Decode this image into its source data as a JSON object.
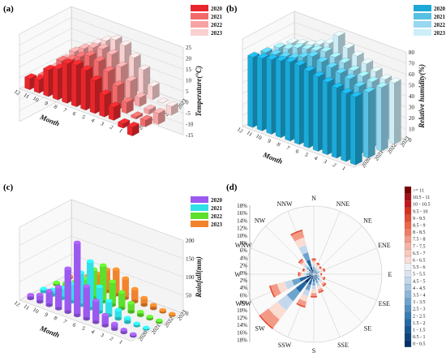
{
  "chart_data": [
    {
      "panel": "(a)",
      "type": "bar",
      "zlabel": "Temperature(°C)",
      "xlabel": "Month",
      "categories": [
        "12",
        "11",
        "10",
        "9",
        "8",
        "7",
        "6",
        "5",
        "4",
        "3",
        "2",
        "1"
      ],
      "years": [
        "2020",
        "2021",
        "2022",
        "2023"
      ],
      "zlim": [
        -15,
        25
      ],
      "zticks": [
        -15,
        -10,
        -5,
        0,
        5,
        10,
        15,
        20,
        25
      ],
      "series": [
        {
          "name": "2020",
          "color": "#e8262b",
          "values": [
            5,
            6,
            12,
            14,
            18,
            19,
            18,
            15,
            10,
            6,
            -2,
            -4
          ]
        },
        {
          "name": "2021",
          "color": "#f26a6a",
          "values": [
            3,
            7,
            13,
            15,
            18,
            20,
            19,
            16,
            11,
            5,
            -1,
            -3
          ]
        },
        {
          "name": "2022",
          "color": "#f7a3a3",
          "values": [
            4,
            9,
            14,
            17,
            19,
            20,
            19,
            15,
            10,
            4,
            -2,
            -5
          ]
        },
        {
          "name": "2023",
          "color": "#fbd0d0",
          "values": [
            2,
            8,
            13,
            16,
            19,
            21,
            20,
            16,
            12,
            6,
            0,
            -4
          ]
        }
      ]
    },
    {
      "panel": "(b)",
      "type": "bar",
      "zlabel": "Relative humidity(%)",
      "xlabel": "Month",
      "categories": [
        "12",
        "11",
        "10",
        "9",
        "8",
        "7",
        "6",
        "5",
        "4",
        "3",
        "2",
        "1"
      ],
      "years": [
        "2020",
        "2021",
        "2022",
        "2023"
      ],
      "zlim": [
        0,
        80
      ],
      "zticks": [
        0,
        10,
        20,
        30,
        40,
        50,
        60,
        70,
        80
      ],
      "series": [
        {
          "name": "2020",
          "color": "#1ba9d8",
          "values": [
            64,
            66,
            68,
            70,
            72,
            72,
            70,
            68,
            66,
            64,
            62,
            62
          ]
        },
        {
          "name": "2021",
          "color": "#56c1e4",
          "values": [
            62,
            63,
            64,
            66,
            70,
            74,
            72,
            70,
            68,
            66,
            62,
            60
          ]
        },
        {
          "name": "2022",
          "color": "#95d8ef",
          "values": [
            60,
            62,
            66,
            68,
            70,
            72,
            70,
            68,
            64,
            62,
            60,
            58
          ]
        },
        {
          "name": "2023",
          "color": "#cdeef8",
          "values": [
            58,
            60,
            62,
            66,
            70,
            80,
            72,
            68,
            64,
            60,
            56,
            56
          ]
        }
      ]
    },
    {
      "panel": "(c)",
      "type": "bar",
      "zlabel": "Rainfall(mm)",
      "xlabel": "Month",
      "categories": [
        "12",
        "11",
        "10",
        "9",
        "8",
        "7",
        "6",
        "5",
        "4",
        "3",
        "2",
        "1"
      ],
      "years": [
        "2020",
        "2021",
        "2022",
        "2023"
      ],
      "zlim": [
        0,
        200
      ],
      "zticks": [
        0,
        50,
        100,
        150,
        200
      ],
      "series": [
        {
          "name": "2020",
          "color": "#9b59f0",
          "values": [
            10,
            20,
            40,
            60,
            120,
            200,
            90,
            60,
            30,
            15,
            8,
            5
          ]
        },
        {
          "name": "2021",
          "color": "#2fe0e6",
          "values": [
            8,
            15,
            30,
            50,
            90,
            130,
            70,
            40,
            25,
            12,
            6,
            4
          ]
        },
        {
          "name": "2022",
          "color": "#5ddf2c",
          "values": [
            6,
            14,
            28,
            45,
            80,
            100,
            65,
            45,
            25,
            10,
            6,
            5
          ]
        },
        {
          "name": "2023",
          "color": "#f0832c",
          "values": [
            5,
            12,
            25,
            40,
            60,
            70,
            55,
            35,
            20,
            10,
            5,
            4
          ]
        }
      ]
    },
    {
      "panel": "(d)",
      "type": "windrose",
      "directions": [
        "N",
        "NNE",
        "NE",
        "ENE",
        "E",
        "ESE",
        "SE",
        "SSE",
        "S",
        "SSW",
        "SW",
        "WSW",
        "W",
        "WNW",
        "NW",
        "NNW"
      ],
      "radial_ticks": [
        "18%",
        "16%",
        "14%",
        "12%",
        "10%",
        "8%",
        "6%",
        "4%",
        "2%",
        "0%",
        "2%",
        "4%",
        "6%",
        "8%",
        "10%",
        "12%",
        "14%",
        "16%",
        "18%"
      ],
      "frequency_percent": [
        4,
        3,
        2.5,
        3,
        2,
        3,
        4,
        5,
        6,
        9,
        18,
        12,
        4,
        3,
        5,
        12
      ],
      "speed_bins": [
        ">= 11",
        "10.5 - 11",
        "10 - 10.5",
        "9.5 - 10",
        "9 - 9.5",
        "8.5 - 9",
        "8 - 8.5",
        "7.5 - 8",
        "7 - 7.5",
        "6.5 - 7",
        "6 - 6.5",
        "5.5 - 6",
        "5 - 5.5",
        "4.5 - 5",
        "4 - 4.5",
        "3.5 - 4",
        "3 - 3.5",
        "2.5 - 3",
        "2 - 2.5",
        "1.5 - 2",
        "1 - 1.5",
        "0.5 - 1",
        "0 - 0.5"
      ],
      "speed_colors": [
        "#7a0000",
        "#a50f15",
        "#c4161c",
        "#d7301f",
        "#e34a33",
        "#ef6548",
        "#f07a63",
        "#f39a86",
        "#f6b3a4",
        "#f8c9bd",
        "#fadcd3",
        "#eef2f6",
        "#d9e6f2",
        "#c3d8ec",
        "#a8c8e3",
        "#8bb6d9",
        "#6ea3cd",
        "#5190c0",
        "#377db3",
        "#2569a3",
        "#165691",
        "#0c437c",
        "#073068"
      ]
    }
  ]
}
